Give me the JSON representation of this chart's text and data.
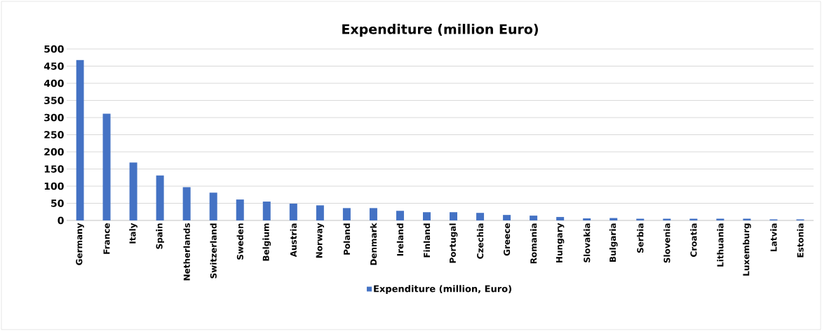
{
  "chart_data": {
    "type": "bar",
    "title": "Expenditure (million Euro)",
    "categories": [
      "Germany",
      "France",
      "Italy",
      "Spain",
      "Netherlands",
      "Switzerland",
      "Sweden",
      "Belgium",
      "Austria",
      "Norway",
      "Poland",
      "Denmark",
      "Ireland",
      "Finland",
      "Portugal",
      "Czechia",
      "Greece",
      "Romania",
      "Hungary",
      "Slovakia",
      "Bulgaria",
      "Serbia",
      "Slovenia",
      "Croatia",
      "Lithuania",
      "Luxemburg",
      "Latvia",
      "Estonia"
    ],
    "series": [
      {
        "name": "Expenditure (million, Euro)",
        "color": "#4472c4",
        "values": [
          468,
          311,
          169,
          131,
          97,
          81,
          61,
          55,
          49,
          44,
          36,
          36,
          28,
          24,
          24,
          22,
          16,
          14,
          10,
          6,
          7,
          5,
          5,
          5,
          5,
          5,
          3,
          3
        ]
      }
    ],
    "ylim": [
      0,
      500
    ],
    "yticks": [
      0,
      50,
      100,
      150,
      200,
      250,
      300,
      350,
      400,
      450,
      500
    ],
    "grid": "y",
    "legend": "bottom"
  }
}
